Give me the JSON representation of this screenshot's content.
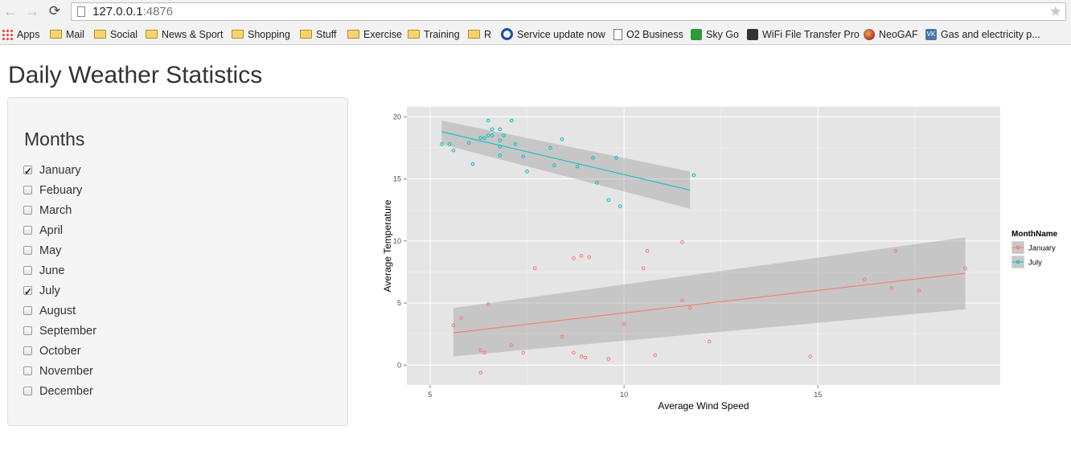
{
  "browser": {
    "url_host": "127.0.0.1",
    "url_port": ":4876",
    "bookmarks": [
      {
        "label": "Apps",
        "icon": "apps-icon"
      },
      {
        "label": "Mail",
        "icon": "folder-icon"
      },
      {
        "label": "Social",
        "icon": "folder-icon"
      },
      {
        "label": "News & Sport",
        "icon": "folder-icon"
      },
      {
        "label": "Shopping",
        "icon": "folder-icon"
      },
      {
        "label": "Stuff",
        "icon": "folder-icon"
      },
      {
        "label": "Exercise",
        "icon": "folder-icon"
      },
      {
        "label": "Training",
        "icon": "folder-icon"
      },
      {
        "label": "R",
        "icon": "folder-icon"
      },
      {
        "label": "Service update now",
        "icon": "tfl-icon"
      },
      {
        "label": "O2 Business",
        "icon": "page-icon"
      },
      {
        "label": "Sky Go",
        "icon": "skygo-icon"
      },
      {
        "label": "WiFi File Transfer Pro",
        "icon": "wifi-icon"
      },
      {
        "label": "NeoGAF",
        "icon": "neogaf-icon"
      },
      {
        "label": "Gas and electricity p...",
        "icon": "vk-icon"
      }
    ]
  },
  "page": {
    "title": "Daily Weather Statistics"
  },
  "sidebar": {
    "heading": "Months",
    "months": [
      {
        "label": "January",
        "checked": true
      },
      {
        "label": "Febuary",
        "checked": false
      },
      {
        "label": "March",
        "checked": false
      },
      {
        "label": "April",
        "checked": false
      },
      {
        "label": "May",
        "checked": false
      },
      {
        "label": "June",
        "checked": false
      },
      {
        "label": "July",
        "checked": true
      },
      {
        "label": "August",
        "checked": false
      },
      {
        "label": "September",
        "checked": false
      },
      {
        "label": "October",
        "checked": false
      },
      {
        "label": "November",
        "checked": false
      },
      {
        "label": "December",
        "checked": false
      }
    ]
  },
  "chart_data": {
    "type": "scatter",
    "title": "",
    "xlabel": "Average Wind Speed",
    "ylabel": "Average Temperature",
    "xlim": [
      4.4,
      19.7
    ],
    "ylim": [
      -1.6,
      20.8
    ],
    "xticks": [
      5,
      10,
      15
    ],
    "yticks": [
      0,
      5,
      10,
      15,
      20
    ],
    "grid": true,
    "legend": {
      "title": "MonthName",
      "position": "right"
    },
    "series": [
      {
        "name": "January",
        "color": "#f8766d",
        "points": [
          [
            5.6,
            3.2
          ],
          [
            5.8,
            3.8
          ],
          [
            6.3,
            -0.6
          ],
          [
            6.3,
            1.2
          ],
          [
            6.4,
            1.0
          ],
          [
            6.5,
            4.9
          ],
          [
            7.1,
            1.6
          ],
          [
            7.4,
            1.0
          ],
          [
            7.7,
            7.8
          ],
          [
            8.4,
            2.3
          ],
          [
            8.7,
            8.6
          ],
          [
            8.7,
            1.0
          ],
          [
            8.9,
            0.7
          ],
          [
            8.9,
            8.8
          ],
          [
            9.0,
            0.6
          ],
          [
            9.1,
            8.7
          ],
          [
            9.6,
            0.5
          ],
          [
            10.0,
            3.3
          ],
          [
            10.5,
            7.8
          ],
          [
            10.6,
            9.2
          ],
          [
            10.8,
            0.8
          ],
          [
            11.5,
            5.2
          ],
          [
            11.5,
            9.9
          ],
          [
            11.7,
            4.6
          ],
          [
            12.2,
            1.9
          ],
          [
            14.8,
            0.7
          ],
          [
            16.2,
            6.9
          ],
          [
            16.9,
            6.2
          ],
          [
            17.0,
            9.2
          ],
          [
            17.6,
            6.0
          ],
          [
            18.8,
            7.8
          ]
        ],
        "fit": {
          "x0": 5.6,
          "y0": 2.6,
          "x1": 18.8,
          "y1": 7.4
        },
        "band": {
          "lower0": 0.7,
          "upper0": 4.6,
          "lower1": 4.5,
          "upper1": 10.3
        }
      },
      {
        "name": "July",
        "color": "#00bfc4",
        "points": [
          [
            5.3,
            17.8
          ],
          [
            5.5,
            17.8
          ],
          [
            5.6,
            17.3
          ],
          [
            6.0,
            17.9
          ],
          [
            6.1,
            16.2
          ],
          [
            6.3,
            18.3
          ],
          [
            6.4,
            18.3
          ],
          [
            6.5,
            18.5
          ],
          [
            6.5,
            19.7
          ],
          [
            6.6,
            19.0
          ],
          [
            6.6,
            18.5
          ],
          [
            6.8,
            18.1
          ],
          [
            6.8,
            17.6
          ],
          [
            6.8,
            19.0
          ],
          [
            6.8,
            16.9
          ],
          [
            6.9,
            18.5
          ],
          [
            7.1,
            19.7
          ],
          [
            7.2,
            17.8
          ],
          [
            7.4,
            16.8
          ],
          [
            7.5,
            15.6
          ],
          [
            8.1,
            17.5
          ],
          [
            8.2,
            16.1
          ],
          [
            8.4,
            18.2
          ],
          [
            8.8,
            16.0
          ],
          [
            9.2,
            16.7
          ],
          [
            9.3,
            14.7
          ],
          [
            9.6,
            13.3
          ],
          [
            9.8,
            16.7
          ],
          [
            9.9,
            12.8
          ],
          [
            11.8,
            15.3
          ]
        ],
        "fit": {
          "x0": 5.3,
          "y0": 18.8,
          "x1": 11.7,
          "y1": 14.1
        },
        "band": {
          "lower0": 17.8,
          "upper0": 19.7,
          "lower1": 12.6,
          "upper1": 15.6
        }
      }
    ]
  }
}
